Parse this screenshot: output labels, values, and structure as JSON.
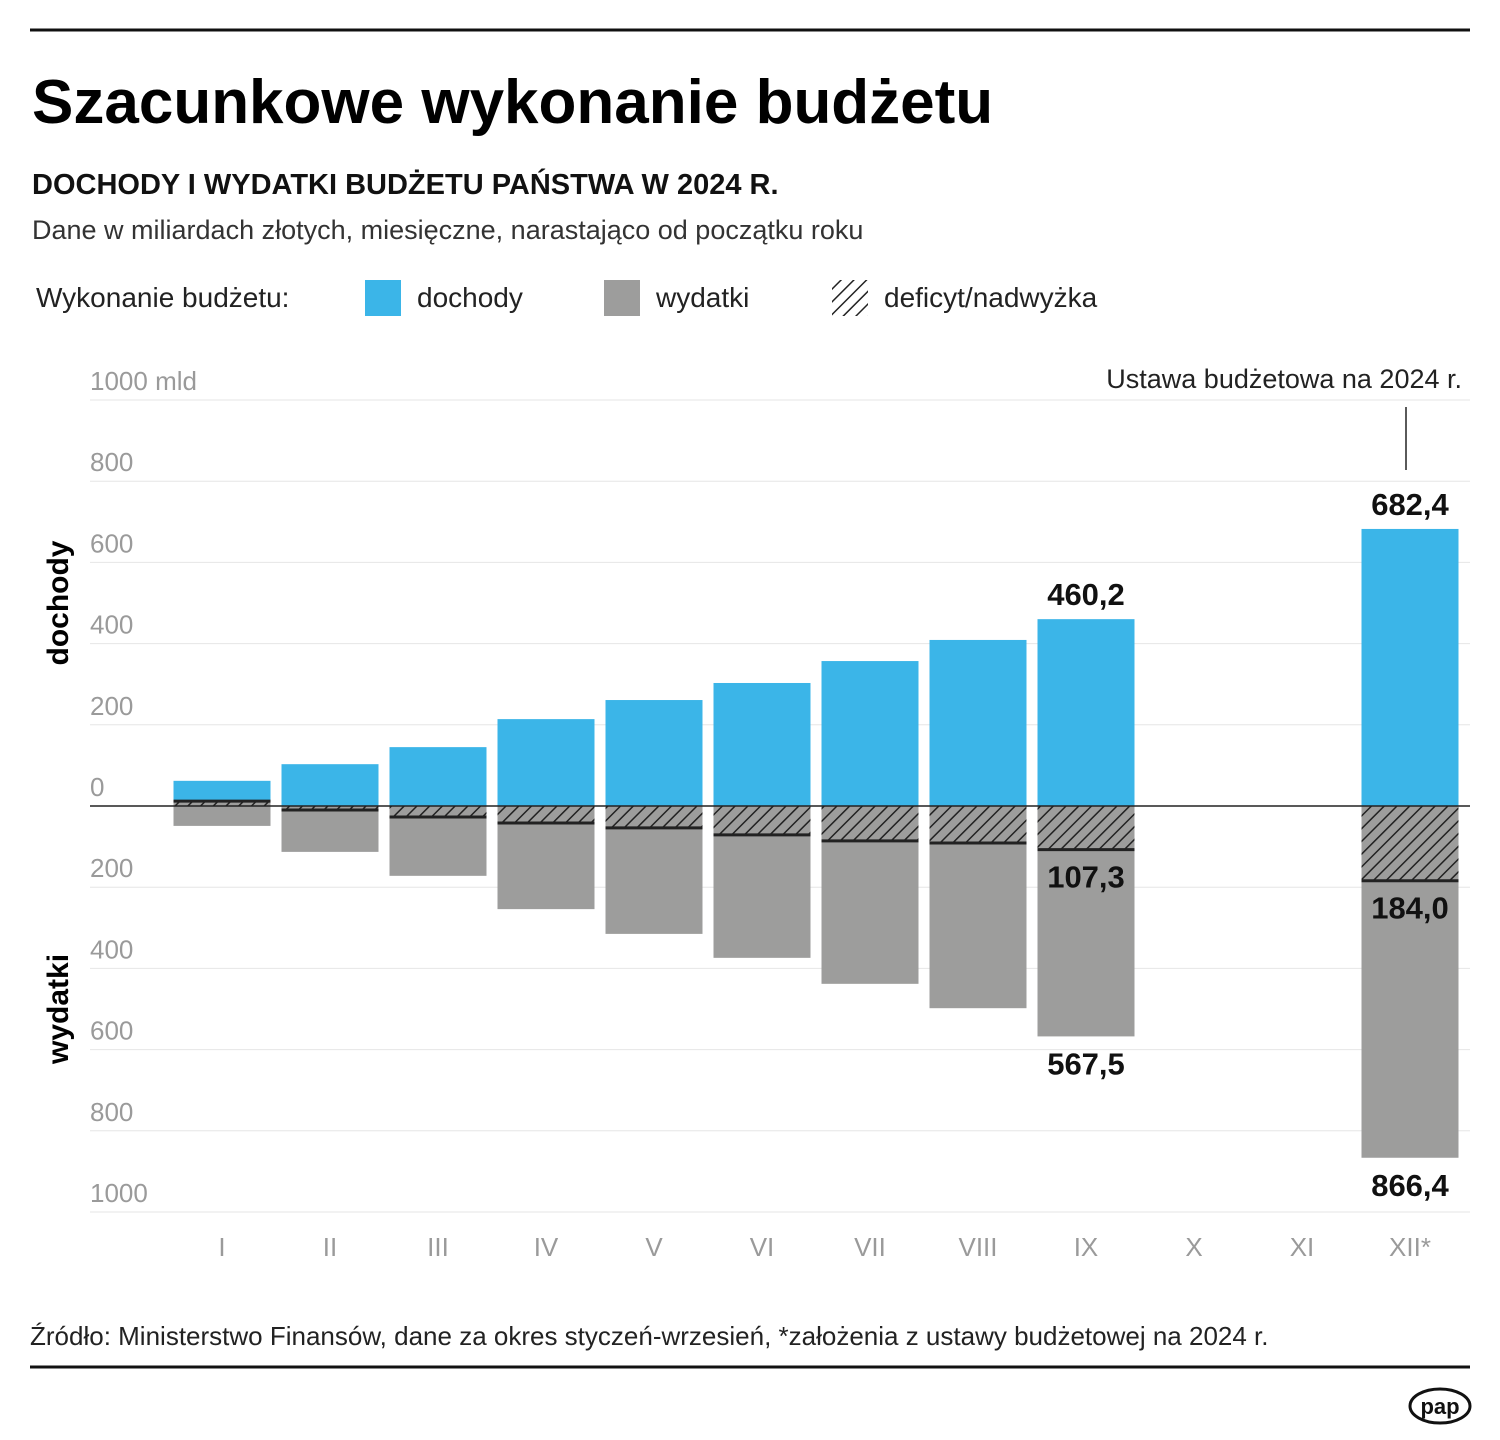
{
  "chart_data": {
    "type": "diverging-bar",
    "title": "Szacunkowe wykonanie budżetu",
    "subtitle": "DOCHODY I WYDATKI BUDŻETU PAŃSTWA W 2024 R.",
    "description": "Dane w miliardach złotych, miesięczne, narastająco od początku roku",
    "legend_title": "Wykonanie budżetu:",
    "annotation": "Ustawa budżetowa na 2024 r.",
    "source": "Źródło: Ministerstwo Finansów, dane za okres styczeń-wrzesień, *założenia z ustawy budżetowej na 2024 r.",
    "logo": "pap",
    "categories": [
      "I",
      "II",
      "III",
      "IV",
      "V",
      "VI",
      "VII",
      "VIII",
      "IX",
      "X",
      "XI",
      "XII*"
    ],
    "series": [
      {
        "name": "dochody",
        "color": "#3bb5e8",
        "values": [
          62,
          103,
          145,
          214,
          261,
          303,
          357,
          409,
          460.2,
          null,
          null,
          682.4
        ],
        "value_labels": [
          null,
          null,
          null,
          null,
          null,
          null,
          null,
          null,
          "460,2",
          null,
          null,
          "682,4"
        ]
      },
      {
        "name": "wydatki",
        "color": "#9d9d9c",
        "values": [
          -49,
          -113,
          -172,
          -254,
          -315,
          -374,
          -438,
          -498,
          -567.5,
          null,
          null,
          -866.4
        ],
        "value_labels": [
          null,
          null,
          null,
          null,
          null,
          null,
          null,
          null,
          "567,5",
          null,
          null,
          "866,4"
        ]
      },
      {
        "name": "deficyt/nadwyżka",
        "color": "#222222",
        "fill": "hatch",
        "values": [
          12,
          -10,
          -27,
          -42,
          -54,
          -71,
          -86,
          -91,
          -107.3,
          null,
          null,
          -184.0
        ],
        "value_labels": [
          null,
          null,
          null,
          null,
          null,
          null,
          null,
          null,
          "107,3",
          null,
          null,
          "184,0"
        ]
      }
    ],
    "ylim": [
      -1000,
      1000
    ],
    "yticks": [
      {
        "value": -1000,
        "label": "1000"
      },
      {
        "value": -800,
        "label": "800"
      },
      {
        "value": -600,
        "label": "600"
      },
      {
        "value": -400,
        "label": "400"
      },
      {
        "value": -200,
        "label": "200"
      },
      0,
      200,
      400,
      600,
      800,
      {
        "value": 1000,
        "label": "1000 mld"
      }
    ],
    "grid": true
  }
}
